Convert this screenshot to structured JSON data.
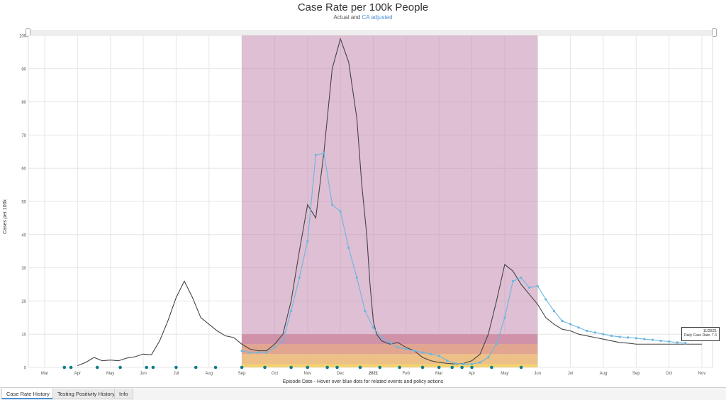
{
  "chart_data": {
    "type": "line",
    "title": "Case Rate per 100k People",
    "subtitle_prefix": "Actual and ",
    "subtitle_highlight": "CA adjusted",
    "ylabel": "Cases per 100k",
    "xlabel": "Episode Date - Hover over blue dots for related events and policy actions",
    "ylim": [
      0,
      100
    ],
    "yticks": [
      0,
      10,
      20,
      30,
      40,
      50,
      60,
      70,
      80,
      90,
      100
    ],
    "xticks": [
      "Mar",
      "Apr",
      "May",
      "Jun",
      "Jul",
      "Aug",
      "Sep",
      "Oct",
      "Nov",
      "Dec",
      "2021",
      "Feb",
      "Mar",
      "Apr",
      "May",
      "Jun",
      "Jul",
      "Aug",
      "Sep",
      "Oct",
      "Nov"
    ],
    "grid": true,
    "colors": {
      "actual": "#444444",
      "adjusted": "#6ab7e0",
      "dots": "#0e7c8c"
    },
    "tiers": [
      {
        "color": "#cf8fa6",
        "top": 10
      },
      {
        "color": "#e2a48c",
        "top": 7
      },
      {
        "color": "#edc083",
        "top": 4
      },
      {
        "color": "#f2d36b",
        "top": 1
      }
    ],
    "series": [
      {
        "key": "actual",
        "x": [
          1.0,
          1.25,
          1.5,
          1.75,
          2.0,
          2.25,
          2.5,
          2.75,
          3.0,
          3.25,
          3.5,
          3.75,
          4.0,
          4.25,
          4.5,
          4.75,
          5.0,
          5.25,
          5.5,
          5.75,
          6.0,
          6.25,
          6.5,
          6.75,
          7.0,
          7.25,
          7.5,
          7.75,
          8.0,
          8.25,
          8.5,
          8.75,
          9.0,
          9.25,
          9.5,
          9.65,
          9.8,
          9.9,
          10.0,
          10.1,
          10.25,
          10.5,
          10.75,
          11.0,
          11.25,
          11.5,
          11.75,
          12.0,
          12.25,
          12.5,
          12.75,
          13.0,
          13.25,
          13.5,
          13.75,
          14.0,
          14.25,
          14.5,
          14.75,
          15.0,
          15.25,
          15.5,
          15.75,
          16.0,
          16.25,
          16.5,
          16.75,
          17.0,
          17.25,
          17.5,
          17.75,
          18.0,
          18.25,
          18.5,
          18.75,
          19.0,
          19.25,
          19.5,
          19.75,
          20.0
        ],
        "y": [
          0.5,
          1.5,
          3.0,
          2.0,
          2.2,
          2.0,
          2.8,
          3.2,
          4.0,
          3.8,
          8.0,
          14.0,
          21.0,
          26.0,
          21.0,
          15.0,
          13.0,
          11.0,
          9.5,
          9.0,
          7.0,
          5.5,
          5.0,
          5.0,
          7.0,
          10.0,
          20.0,
          35.0,
          49.0,
          45.0,
          65.0,
          90.0,
          99.0,
          92.0,
          75.0,
          55.0,
          40.0,
          25.0,
          14.0,
          10.0,
          8.0,
          7.0,
          7.5,
          6.0,
          5.0,
          3.0,
          2.0,
          1.5,
          1.2,
          1.0,
          1.2,
          2.0,
          4.0,
          10.0,
          20.0,
          31.0,
          29.0,
          25.0,
          22.0,
          19.0,
          15.0,
          13.0,
          11.5,
          11.0,
          10.0,
          9.5,
          9.0,
          8.5,
          8.0,
          7.5,
          7.3,
          7.0,
          7.0,
          7.0,
          7.0,
          7.0,
          7.0,
          7.0,
          7.0,
          7.0
        ]
      },
      {
        "key": "adjusted",
        "x": [
          6.0,
          6.25,
          6.5,
          6.75,
          7.0,
          7.25,
          7.5,
          7.75,
          8.0,
          8.25,
          8.5,
          8.75,
          9.0,
          9.25,
          9.5,
          9.75,
          10.0,
          10.25,
          10.5,
          10.75,
          11.0,
          11.25,
          11.5,
          11.75,
          12.0,
          12.25,
          12.5,
          12.75,
          13.0,
          13.25,
          13.5,
          13.75,
          14.0,
          14.25,
          14.5,
          14.75,
          15.0,
          15.25,
          15.5,
          15.75,
          16.0,
          16.25,
          16.5,
          16.75,
          17.0,
          17.25,
          17.5,
          17.75,
          18.0,
          18.25,
          18.5,
          18.75,
          19.0,
          19.25,
          19.5
        ],
        "y": [
          5.0,
          4.5,
          4.5,
          4.5,
          6.0,
          8.0,
          17.0,
          27.0,
          38.0,
          64.0,
          64.5,
          49.0,
          47.0,
          36.0,
          27.0,
          17.0,
          12.0,
          9.0,
          7.5,
          6.0,
          5.5,
          5.0,
          4.5,
          4.0,
          3.5,
          2.0,
          1.2,
          1.0,
          1.0,
          1.5,
          3.0,
          7.0,
          15.0,
          26.0,
          27.0,
          24.0,
          24.5,
          20.5,
          17.0,
          14.0,
          13.0,
          12.0,
          11.0,
          10.5,
          10.0,
          9.5,
          9.2,
          9.0,
          8.8,
          8.5,
          8.3,
          8.0,
          7.8,
          7.5,
          7.3
        ]
      }
    ],
    "highlight_band": {
      "color": "#c48aae",
      "x_start": 6.0,
      "x_end": 15.0
    },
    "event_dots_x": [
      0.6,
      0.8,
      1.6,
      2.3,
      3.1,
      3.3,
      4.0,
      4.6,
      5.2,
      6.0,
      6.7,
      7.5,
      8.0,
      8.6,
      8.9,
      9.6,
      10.2,
      10.8,
      11.5,
      12.0,
      12.4,
      12.7,
      13.0,
      13.6,
      14.5
    ]
  },
  "tooltip": {
    "date": "11/28/21",
    "label": "Daily Case Rate: 7.3"
  },
  "tabs": [
    {
      "label": "Case Rate History",
      "active": true
    },
    {
      "label": "Testing Positivity History",
      "active": false
    },
    {
      "label": "Info",
      "active": false
    }
  ]
}
